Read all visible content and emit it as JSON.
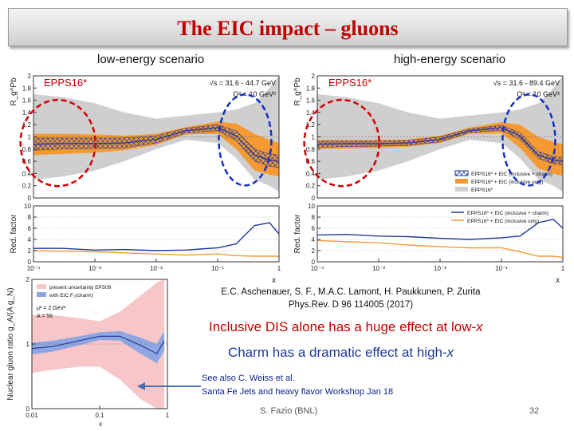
{
  "slide": {
    "title": "The EIC impact – gluons",
    "low_label": "low-energy scenario",
    "high_label": "high-energy scenario",
    "epps_tag": "EPPS16*",
    "reference_line1": "E.C. Aschenauer, S. F., M.A.C. Lamont, H. Paukkunen, P. Zurita",
    "reference_line2": "Phys.Rev. D 96 114005 (2017)",
    "dis_text_prefix": "Inclusive DIS alone has a huge effect at low-",
    "charm_text_prefix": "Charm has a dramatic effect at high-",
    "x_var": "x",
    "see_also_line1": "See also C. Weiss et al.",
    "see_also_line2": "Santa Fe Jets and heavy flavor Workshop Jan 18",
    "author": "S. Fazio (BNL)",
    "page_number": "32"
  },
  "chart_data": [
    {
      "type": "line",
      "panel": "low-energy scenario (top)",
      "ylabel": "R_g^Pb",
      "xscale": "log",
      "xlim": [
        0.0001,
        1
      ],
      "ylim": [
        0,
        2
      ],
      "yticks": [
        "0",
        "0.2",
        "0.4",
        "0.6",
        "0.8",
        "1",
        "1.2",
        "1.4",
        "1.6",
        "1.8",
        "2"
      ],
      "annotation_line1": "√s = 31.6 - 44.7 GeV",
      "annotation_line2": "Q² = 10 GeV²",
      "x": [
        0.0001,
        0.0003,
        0.001,
        0.003,
        0.01,
        0.03,
        0.1,
        0.2,
        0.4,
        0.7,
        1
      ],
      "series": [
        {
          "name": "EPPS16* central",
          "values": [
            0.88,
            0.89,
            0.89,
            0.9,
            0.96,
            1.1,
            1.15,
            1.02,
            0.7,
            0.62,
            0.6
          ]
        },
        {
          "name": "EPPS16* uncertainty upper",
          "values": [
            1.7,
            1.65,
            1.55,
            1.4,
            1.3,
            1.35,
            1.4,
            1.45,
            1.55,
            1.8,
            2.0
          ]
        },
        {
          "name": "EPPS16* uncertainty lower",
          "values": [
            0.3,
            0.35,
            0.45,
            0.6,
            0.8,
            0.95,
            0.9,
            0.65,
            0.3,
            0.2,
            0.1
          ]
        },
        {
          "name": "EPPS16* + EIC (inclusive only) upper",
          "values": [
            1.05,
            1.05,
            1.04,
            1.02,
            1.05,
            1.16,
            1.25,
            1.22,
            1.05,
            0.95,
            0.9
          ]
        },
        {
          "name": "EPPS16* + EIC (inclusive only) lower",
          "values": [
            0.7,
            0.72,
            0.74,
            0.78,
            0.87,
            1.04,
            1.05,
            0.8,
            0.45,
            0.38,
            0.35
          ]
        },
        {
          "name": "EPPS16* + EIC (inclusive + charm) upper",
          "values": [
            0.98,
            0.98,
            0.98,
            0.98,
            1.02,
            1.14,
            1.2,
            1.1,
            0.8,
            0.72,
            0.7
          ]
        },
        {
          "name": "EPPS16* + EIC (inclusive + charm) lower",
          "values": [
            0.78,
            0.8,
            0.81,
            0.82,
            0.9,
            1.06,
            1.1,
            0.94,
            0.6,
            0.52,
            0.5
          ]
        }
      ]
    },
    {
      "type": "line",
      "panel": "low-energy scenario (bottom)",
      "ylabel": "Red. factor",
      "xlabel": "x",
      "xscale": "log",
      "xlim": [
        0.0001,
        1
      ],
      "ylim": [
        0,
        10
      ],
      "yticks": [
        "0",
        "2",
        "4",
        "6",
        "8",
        "10"
      ],
      "xticks": [
        "10⁻⁴",
        "10⁻³",
        "10⁻²",
        "10⁻¹",
        "1"
      ],
      "x": [
        0.0001,
        0.0003,
        0.001,
        0.003,
        0.01,
        0.03,
        0.1,
        0.2,
        0.4,
        0.7,
        1
      ],
      "series": [
        {
          "name": "EPPS16* + EIC (inclusive + charm)",
          "values": [
            2.4,
            2.4,
            2.1,
            2.2,
            2.0,
            2.1,
            2.5,
            3.2,
            6.5,
            7.0,
            5.0
          ]
        },
        {
          "name": "EPPS16* + EIC (inclusive only)",
          "values": [
            2.0,
            1.9,
            1.8,
            1.6,
            1.4,
            1.2,
            1.4,
            1.1,
            1.0,
            1.0,
            1.0
          ]
        }
      ]
    },
    {
      "type": "line",
      "panel": "high-energy scenario (top)",
      "ylabel": "R_g^Pb",
      "xscale": "log",
      "xlim": [
        0.0001,
        1
      ],
      "ylim": [
        0,
        2
      ],
      "yticks": [
        "0",
        "0.2",
        "0.4",
        "0.6",
        "0.8",
        "1",
        "1.2",
        "1.4",
        "1.6",
        "1.8",
        "2"
      ],
      "annotation_line1": "√s = 31.6 - 89.4 GeV",
      "annotation_line2": "Q² = 10 GeV²",
      "legend": [
        "EPPS16* + EIC (inclusive + charm)",
        "EPPS16* + EIC (inclusive only)",
        "EPPS16*"
      ],
      "legend_position": "bottom-right",
      "x": [
        0.0001,
        0.0003,
        0.001,
        0.003,
        0.01,
        0.03,
        0.1,
        0.2,
        0.4,
        0.7,
        1
      ],
      "series": [
        {
          "name": "EPPS16* central",
          "values": [
            0.88,
            0.89,
            0.89,
            0.9,
            0.96,
            1.1,
            1.15,
            1.02,
            0.7,
            0.62,
            0.6
          ]
        },
        {
          "name": "EPPS16* uncertainty upper",
          "values": [
            1.7,
            1.65,
            1.55,
            1.4,
            1.3,
            1.35,
            1.4,
            1.45,
            1.55,
            1.8,
            2.0
          ]
        },
        {
          "name": "EPPS16* uncertainty lower",
          "values": [
            0.3,
            0.35,
            0.45,
            0.6,
            0.8,
            0.95,
            0.9,
            0.65,
            0.3,
            0.2,
            0.1
          ]
        },
        {
          "name": "EPPS16* + EIC (inclusive only) upper",
          "values": [
            0.95,
            0.95,
            0.95,
            0.96,
            1.02,
            1.15,
            1.24,
            1.2,
            1.0,
            0.92,
            0.88
          ]
        },
        {
          "name": "EPPS16* + EIC (inclusive only) lower",
          "values": [
            0.8,
            0.81,
            0.82,
            0.84,
            0.9,
            1.05,
            1.06,
            0.82,
            0.48,
            0.4,
            0.36
          ]
        },
        {
          "name": "EPPS16* + EIC (inclusive + charm) upper",
          "values": [
            0.93,
            0.93,
            0.93,
            0.94,
            1.0,
            1.13,
            1.19,
            1.07,
            0.76,
            0.68,
            0.66
          ]
        },
        {
          "name": "EPPS16* + EIC (inclusive + charm) lower",
          "values": [
            0.83,
            0.84,
            0.85,
            0.86,
            0.92,
            1.07,
            1.11,
            0.96,
            0.64,
            0.56,
            0.54
          ]
        }
      ]
    },
    {
      "type": "line",
      "panel": "high-energy scenario (bottom)",
      "ylabel": "Red. factor",
      "xlabel": "x",
      "xscale": "log",
      "xlim": [
        0.0001,
        1
      ],
      "ylim": [
        0,
        10
      ],
      "yticks": [
        "0",
        "2",
        "4",
        "6",
        "8",
        "10"
      ],
      "xticks": [
        "10⁻⁴",
        "10⁻³",
        "10⁻²",
        "10⁻¹",
        "1"
      ],
      "legend": [
        "EPPS16* + EIC (inclusive + charm)",
        "EPPS16* + EIC (inclusive only)"
      ],
      "legend_position": "top-right",
      "x": [
        0.0001,
        0.0003,
        0.001,
        0.003,
        0.01,
        0.03,
        0.1,
        0.2,
        0.4,
        0.7,
        1
      ],
      "series": [
        {
          "name": "EPPS16* + EIC (inclusive + charm)",
          "values": [
            4.8,
            4.9,
            4.6,
            4.5,
            4.2,
            4.0,
            4.3,
            4.6,
            7.0,
            7.6,
            6.0
          ]
        },
        {
          "name": "EPPS16* + EIC (inclusive only)",
          "values": [
            3.8,
            3.6,
            3.4,
            3.0,
            2.7,
            2.5,
            2.5,
            1.8,
            1.0,
            1.0,
            0.8
          ]
        }
      ]
    },
    {
      "type": "line",
      "panel": "nuclear gluon ratio (bottom-left)",
      "ylabel": "Nuclear gluon ratio g_A/(A g_N)",
      "xlabel": "x",
      "xscale": "log",
      "xlim": [
        0.01,
        1
      ],
      "ylim": [
        0,
        2
      ],
      "yticks": [
        "0",
        "1",
        "2"
      ],
      "xticks": [
        "0.01",
        "0.1",
        "1"
      ],
      "legend": [
        "present uncertainty EPS09",
        "with EIC F₂(charm)"
      ],
      "annotation_line1": "μ² = 2 GeV²",
      "annotation_line2": "A = 56",
      "x": [
        0.01,
        0.02,
        0.05,
        0.1,
        0.2,
        0.4,
        0.7,
        0.9
      ],
      "series": [
        {
          "name": "present uncertainty EPS09 upper",
          "values": [
            1.45,
            1.45,
            1.4,
            1.35,
            1.5,
            1.75,
            1.95,
            2.0
          ]
        },
        {
          "name": "present uncertainty EPS09 lower",
          "values": [
            0.55,
            0.6,
            0.65,
            0.65,
            0.45,
            0.15,
            0.0,
            0.0
          ]
        },
        {
          "name": "with EIC F₂(charm) upper",
          "values": [
            1.02,
            1.05,
            1.12,
            1.18,
            1.2,
            1.1,
            1.0,
            1.2
          ]
        },
        {
          "name": "with EIC F₂(charm) lower",
          "values": [
            0.84,
            0.88,
            0.98,
            1.06,
            1.05,
            0.85,
            0.7,
            0.9
          ]
        },
        {
          "name": "central",
          "values": [
            0.93,
            0.96,
            1.05,
            1.12,
            1.12,
            0.98,
            0.85,
            1.05
          ]
        }
      ]
    }
  ]
}
